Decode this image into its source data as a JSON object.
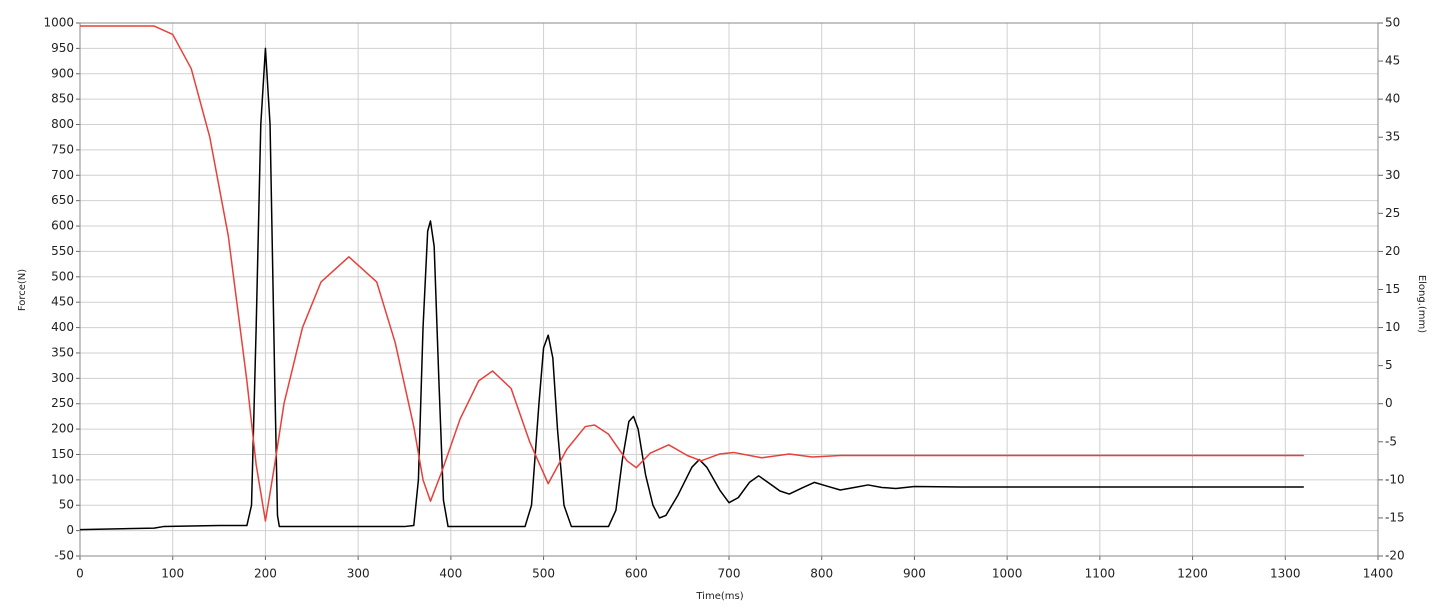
{
  "chart_data": {
    "type": "line",
    "xlabel": "Time(ms)",
    "ylabel": "Force(N)",
    "y2label": "Elong.(mm)",
    "xlim": [
      0,
      1400
    ],
    "xticks": [
      0,
      100,
      200,
      300,
      400,
      500,
      600,
      700,
      800,
      900,
      1000,
      1100,
      1200,
      1300,
      1400
    ],
    "ylim": [
      -50,
      1000
    ],
    "yticks": [
      -50,
      0,
      50,
      100,
      150,
      200,
      250,
      300,
      350,
      400,
      450,
      500,
      550,
      600,
      650,
      700,
      750,
      800,
      850,
      900,
      950,
      1000
    ],
    "y2lim": [
      -20,
      50
    ],
    "y2ticks": [
      -20,
      -15,
      -10,
      -5,
      0,
      5,
      10,
      15,
      20,
      25,
      30,
      35,
      40,
      45,
      50
    ],
    "grid": true,
    "series": [
      {
        "color": "#000000",
        "axis": "y",
        "x": [
          0,
          80,
          90,
          150,
          180,
          185,
          190,
          195,
          200,
          205,
          210,
          213,
          215,
          250,
          300,
          350,
          360,
          365,
          370,
          375,
          378,
          382,
          387,
          392,
          397,
          450,
          480,
          487,
          495,
          500,
          505,
          510,
          515,
          522,
          530,
          570,
          578,
          585,
          592,
          597,
          602,
          610,
          618,
          625,
          632,
          645,
          660,
          668,
          676,
          690,
          700,
          710,
          722,
          732,
          742,
          755,
          765,
          780,
          792,
          805,
          820,
          835,
          850,
          865,
          880,
          900,
          950,
          1000,
          1100,
          1200,
          1320
        ],
        "values": [
          2,
          5,
          8,
          10,
          10,
          50,
          400,
          800,
          950,
          800,
          300,
          30,
          8,
          8,
          8,
          8,
          10,
          100,
          400,
          590,
          610,
          560,
          300,
          60,
          8,
          8,
          8,
          50,
          250,
          360,
          385,
          340,
          200,
          50,
          8,
          8,
          40,
          140,
          215,
          225,
          200,
          110,
          50,
          25,
          30,
          70,
          125,
          140,
          125,
          80,
          55,
          65,
          95,
          108,
          95,
          78,
          72,
          85,
          95,
          88,
          80,
          85,
          90,
          85,
          83,
          87,
          86,
          86,
          86,
          86,
          86
        ]
      },
      {
        "color": "#e8403a",
        "axis": "y2",
        "x": [
          0,
          80,
          100,
          120,
          140,
          160,
          180,
          190,
          200,
          210,
          220,
          240,
          260,
          290,
          320,
          340,
          360,
          370,
          378,
          390,
          410,
          430,
          445,
          465,
          485,
          505,
          525,
          545,
          555,
          570,
          590,
          600,
          615,
          635,
          655,
          670,
          690,
          705,
          735,
          765,
          790,
          820,
          1320
        ],
        "values": [
          49.6,
          49.6,
          48.5,
          44,
          35,
          22,
          3,
          -8,
          -15.4,
          -8,
          0,
          10,
          16,
          19.3,
          16,
          8,
          -3,
          -10,
          -12.8,
          -9,
          -2,
          3,
          4.3,
          2,
          -5,
          -10.5,
          -6,
          -3,
          -2.8,
          -4,
          -7.5,
          -8.4,
          -6.5,
          -5.4,
          -6.8,
          -7.5,
          -6.6,
          -6.4,
          -7.1,
          -6.6,
          -7.0,
          -6.8,
          -6.8
        ]
      }
    ]
  }
}
